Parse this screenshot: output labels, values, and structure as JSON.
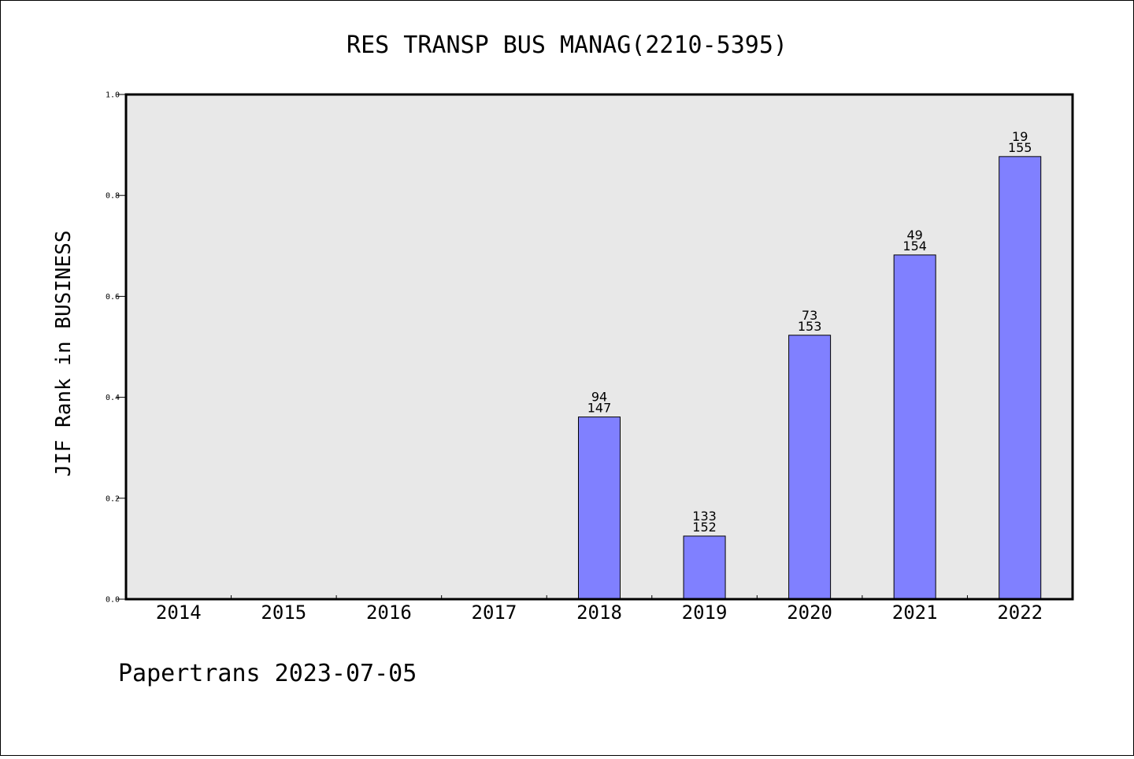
{
  "footer": "Papertrans 2023-07-05",
  "colors": {
    "plot_bg": "#e8e8e8",
    "bar": "#8080ff",
    "axis": "#000000"
  },
  "chart_data": {
    "type": "bar",
    "title": "RES TRANSP BUS MANAG(2210-5395)",
    "xlabel": "",
    "ylabel": "JIF Rank in BUSINESS",
    "ylim": [
      0,
      1.0
    ],
    "yticks": [
      "0.0",
      "0.2",
      "0.4",
      "0.6",
      "0.8",
      "1.0"
    ],
    "grid": false,
    "categories": [
      "2014",
      "2015",
      "2016",
      "2017",
      "2018",
      "2019",
      "2020",
      "2021",
      "2022"
    ],
    "values": [
      null,
      null,
      null,
      null,
      0.361,
      0.125,
      0.523,
      0.682,
      0.877
    ],
    "labels": [
      null,
      null,
      null,
      null,
      {
        "rank": "94",
        "total": "147"
      },
      {
        "rank": "133",
        "total": "152"
      },
      {
        "rank": "73",
        "total": "153"
      },
      {
        "rank": "49",
        "total": "154"
      },
      {
        "rank": "19",
        "total": "155"
      }
    ]
  }
}
